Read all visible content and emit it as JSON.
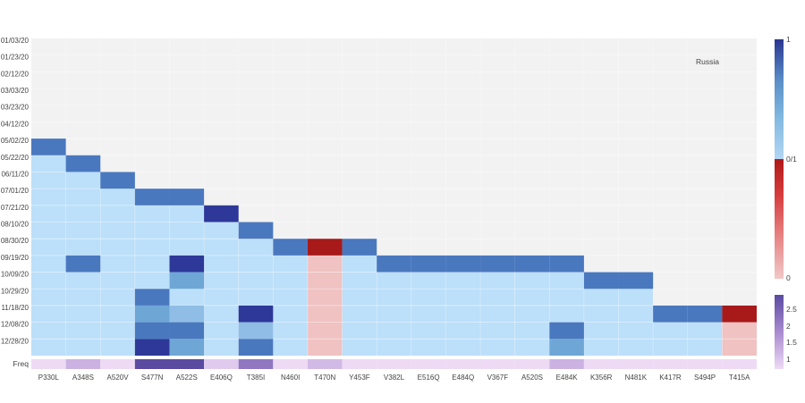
{
  "chart_data": {
    "type": "heatmap",
    "annotation": "Russia",
    "x_categories": [
      "P330L",
      "A348S",
      "A520V",
      "S477N",
      "A522S",
      "E406Q",
      "T385I",
      "N460I",
      "T470N",
      "Y453F",
      "V382L",
      "E516Q",
      "E484Q",
      "V367F",
      "A520S",
      "E484K",
      "K356R",
      "N481K",
      "K417R",
      "S494P",
      "T415A"
    ],
    "y_categories": [
      "01/03/20",
      "01/23/20",
      "02/12/20",
      "03/03/20",
      "03/23/20",
      "04/12/20",
      "05/02/20",
      "05/22/20",
      "06/11/20",
      "07/01/20",
      "07/21/20",
      "08/10/20",
      "08/30/20",
      "09/19/20",
      "10/09/20",
      "10/29/20",
      "11/18/20",
      "12/08/20",
      "12/28/20"
    ],
    "grid": true,
    "colorbar_blue": {
      "ticks": [
        "1",
        "0/1"
      ],
      "scale": [
        "#b3d6f5",
        "#80b8e0",
        "#5a8fc8",
        "#2a3690"
      ]
    },
    "colorbar_red": {
      "ticks": [
        "0/1",
        "0"
      ],
      "scale": [
        "#f2c8c8",
        "#e57a7a",
        "#d63c3c",
        "#b01818"
      ]
    },
    "freq_row": {
      "label": "Freq",
      "values": [
        1.0,
        1.5,
        1.0,
        3.0,
        3.0,
        1.2,
        2.3,
        1.0,
        1.4,
        1.0,
        1.0,
        1.0,
        1.0,
        1.0,
        1.0,
        1.5,
        1.0,
        1.0,
        1.0,
        1.0,
        1.0
      ],
      "colorbar_ticks": [
        "2.5",
        "2",
        "1.5",
        "1"
      ]
    },
    "colors": {
      "background": "#f2f2f2",
      "blue_fill": "#bcdffa",
      "red_fill": "#f0c2c2",
      "detect_blue": "#4a78bf",
      "strong_blue": "#2e3898",
      "light_blue": "#6ea6d6",
      "pale_blue": "#8fbde5",
      "detect_red": "#a81a1a"
    },
    "cells": [
      {
        "col": "P330L",
        "start": "05/02/20",
        "end": "12/28/20",
        "type": "blue"
      },
      {
        "col": "A348S",
        "start": "05/22/20",
        "end": "12/28/20",
        "type": "blue"
      },
      {
        "col": "A520V",
        "start": "06/11/20",
        "end": "12/28/20",
        "type": "blue"
      },
      {
        "col": "S477N",
        "start": "07/01/20",
        "end": "12/28/20",
        "type": "blue"
      },
      {
        "col": "A522S",
        "start": "07/01/20",
        "end": "12/28/20",
        "type": "blue"
      },
      {
        "col": "E406Q",
        "start": "07/21/20",
        "end": "12/28/20",
        "type": "blue"
      },
      {
        "col": "T385I",
        "start": "08/10/20",
        "end": "12/28/20",
        "type": "blue"
      },
      {
        "col": "N460I",
        "start": "08/30/20",
        "end": "12/28/20",
        "type": "blue"
      },
      {
        "col": "T470N",
        "start": "08/30/20",
        "end": "12/28/20",
        "type": "red"
      },
      {
        "col": "Y453F",
        "start": "08/30/20",
        "end": "12/28/20",
        "type": "blue"
      },
      {
        "col": "V382L",
        "start": "09/19/20",
        "end": "12/28/20",
        "type": "blue"
      },
      {
        "col": "E516Q",
        "start": "09/19/20",
        "end": "12/28/20",
        "type": "blue"
      },
      {
        "col": "E484Q",
        "start": "09/19/20",
        "end": "12/28/20",
        "type": "blue"
      },
      {
        "col": "V367F",
        "start": "09/19/20",
        "end": "12/28/20",
        "type": "blue"
      },
      {
        "col": "A520S",
        "start": "09/19/20",
        "end": "12/28/20",
        "type": "blue"
      },
      {
        "col": "E484K",
        "start": "09/19/20",
        "end": "12/28/20",
        "type": "blue"
      },
      {
        "col": "K356R",
        "start": "10/09/20",
        "end": "12/28/20",
        "type": "blue"
      },
      {
        "col": "N481K",
        "start": "10/09/20",
        "end": "12/28/20",
        "type": "blue"
      },
      {
        "col": "K417R",
        "start": "11/18/20",
        "end": "12/28/20",
        "type": "blue"
      },
      {
        "col": "S494P",
        "start": "11/18/20",
        "end": "12/28/20",
        "type": "blue"
      },
      {
        "col": "T415A",
        "start": "11/18/20",
        "end": "12/28/20",
        "type": "red"
      }
    ],
    "detections": [
      {
        "col": "P330L",
        "date": "05/02/20",
        "tone": "detect_blue"
      },
      {
        "col": "A348S",
        "date": "05/22/20",
        "tone": "detect_blue"
      },
      {
        "col": "A520V",
        "date": "06/11/20",
        "tone": "detect_blue"
      },
      {
        "col": "S477N",
        "date": "07/01/20",
        "tone": "detect_blue"
      },
      {
        "col": "A522S",
        "date": "07/01/20",
        "tone": "detect_blue"
      },
      {
        "col": "E406Q",
        "date": "07/21/20",
        "tone": "strong_blue"
      },
      {
        "col": "T385I",
        "date": "08/10/20",
        "tone": "detect_blue"
      },
      {
        "col": "N460I",
        "date": "08/30/20",
        "tone": "detect_blue"
      },
      {
        "col": "T470N",
        "date": "08/30/20",
        "tone": "detect_red"
      },
      {
        "col": "Y453F",
        "date": "08/30/20",
        "tone": "detect_blue"
      },
      {
        "col": "V382L",
        "date": "09/19/20",
        "tone": "detect_blue"
      },
      {
        "col": "E516Q",
        "date": "09/19/20",
        "tone": "detect_blue"
      },
      {
        "col": "E484Q",
        "date": "09/19/20",
        "tone": "detect_blue"
      },
      {
        "col": "V367F",
        "date": "09/19/20",
        "tone": "detect_blue"
      },
      {
        "col": "A520S",
        "date": "09/19/20",
        "tone": "detect_blue"
      },
      {
        "col": "E484K",
        "date": "09/19/20",
        "tone": "detect_blue"
      },
      {
        "col": "K356R",
        "date": "10/09/20",
        "tone": "detect_blue"
      },
      {
        "col": "N481K",
        "date": "10/09/20",
        "tone": "detect_blue"
      },
      {
        "col": "K417R",
        "date": "11/18/20",
        "tone": "detect_blue"
      },
      {
        "col": "S494P",
        "date": "11/18/20",
        "tone": "detect_blue"
      },
      {
        "col": "T415A",
        "date": "11/18/20",
        "tone": "detect_red"
      },
      {
        "col": "A348S",
        "date": "09/19/20",
        "tone": "detect_blue"
      },
      {
        "col": "A522S",
        "date": "09/19/20",
        "tone": "strong_blue"
      },
      {
        "col": "A522S",
        "date": "10/09/20",
        "tone": "light_blue"
      },
      {
        "col": "S477N",
        "date": "10/29/20",
        "tone": "detect_blue"
      },
      {
        "col": "S477N",
        "date": "11/18/20",
        "tone": "light_blue"
      },
      {
        "col": "A522S",
        "date": "11/18/20",
        "tone": "pale_blue"
      },
      {
        "col": "T385I",
        "date": "11/18/20",
        "tone": "strong_blue"
      },
      {
        "col": "S477N",
        "date": "12/08/20",
        "tone": "detect_blue"
      },
      {
        "col": "A522S",
        "date": "12/08/20",
        "tone": "detect_blue"
      },
      {
        "col": "T385I",
        "date": "12/08/20",
        "tone": "pale_blue"
      },
      {
        "col": "E484K",
        "date": "12/08/20",
        "tone": "detect_blue"
      },
      {
        "col": "S477N",
        "date": "12/28/20",
        "tone": "strong_blue"
      },
      {
        "col": "A522S",
        "date": "12/28/20",
        "tone": "light_blue"
      },
      {
        "col": "T385I",
        "date": "12/28/20",
        "tone": "detect_blue"
      },
      {
        "col": "E484K",
        "date": "12/28/20",
        "tone": "light_blue"
      }
    ]
  }
}
